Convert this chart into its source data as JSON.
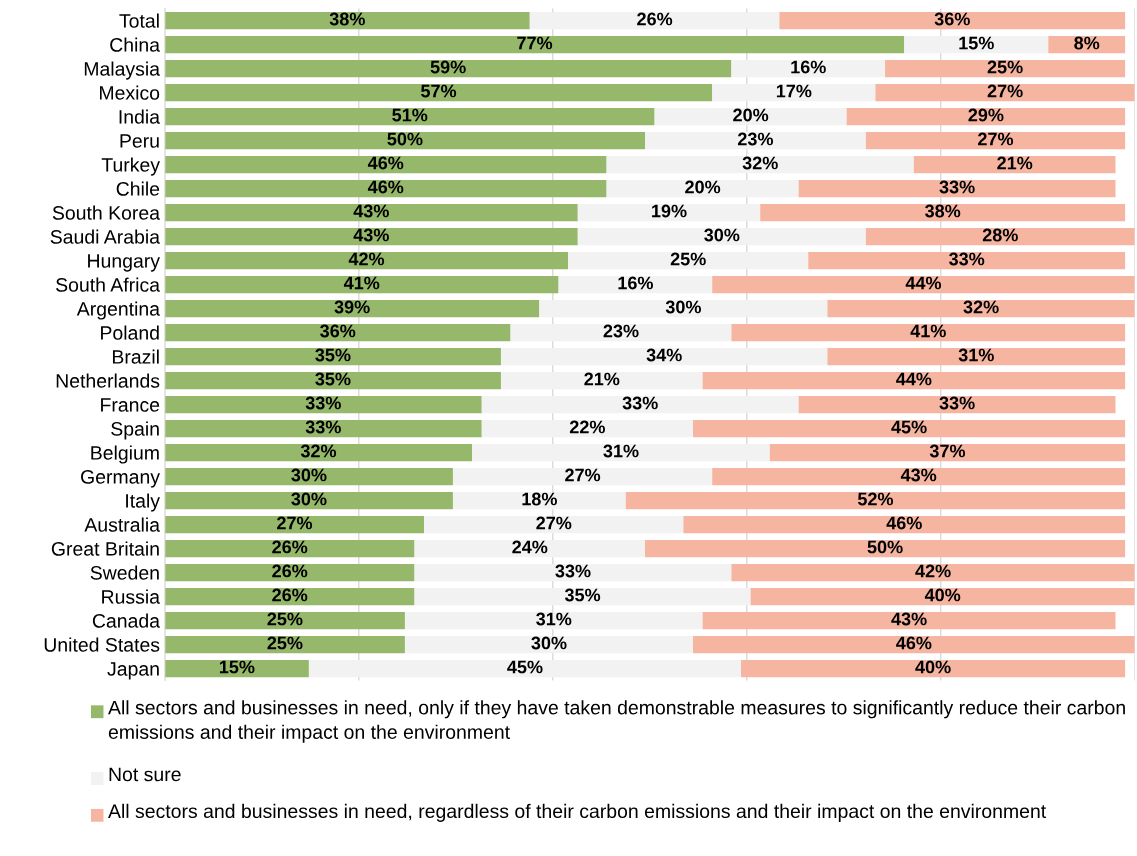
{
  "chart_data": {
    "type": "bar",
    "orientation": "horizontal",
    "stacked": true,
    "grid": "x",
    "legend": "bottom",
    "tick_labels": "y",
    "categories": [
      "Total",
      "China",
      "Malaysia",
      "Mexico",
      "India",
      "Peru",
      "Turkey",
      "Chile",
      "South Korea",
      "Saudi Arabia",
      "Hungary",
      "South Africa",
      "Argentina",
      "Poland",
      "Brazil",
      "Netherlands",
      "France",
      "Spain",
      "Belgium",
      "Germany",
      "Italy",
      "Australia",
      "Great Britain",
      "Sweden",
      "Russia",
      "Canada",
      "United States",
      "Japan"
    ],
    "series": [
      {
        "name": "All sectors and businesses in need, only if they have taken demonstrable measures to significantly reduce their carbon emissions and their impact on the environment",
        "color": "#95b86a",
        "values": [
          38,
          77,
          59,
          57,
          51,
          50,
          46,
          46,
          43,
          43,
          42,
          41,
          39,
          36,
          35,
          35,
          33,
          33,
          32,
          30,
          30,
          27,
          26,
          26,
          26,
          25,
          25,
          15
        ],
        "value_labels": [
          "38%",
          "77%",
          "59%",
          "57%",
          "51%",
          "50%",
          "46%",
          "46%",
          "43%",
          "43%",
          "42%",
          "41%",
          "39%",
          "36%",
          "35%",
          "35%",
          "33%",
          "33%",
          "32%",
          "30%",
          "30%",
          "27%",
          "26%",
          "26%",
          "26%",
          "25%",
          "25%",
          "15%"
        ]
      },
      {
        "name": "Not sure",
        "color": "#f2f2f2",
        "values": [
          26,
          15,
          16,
          17,
          20,
          23,
          32,
          20,
          19,
          30,
          25,
          16,
          30,
          23,
          34,
          21,
          33,
          22,
          31,
          27,
          18,
          27,
          24,
          33,
          35,
          31,
          30,
          45
        ],
        "value_labels": [
          "26%",
          "15%",
          "16%",
          "17%",
          "20%",
          "23%",
          "32%",
          "20%",
          "19%",
          "30%",
          "25%",
          "16%",
          "30%",
          "23%",
          "34%",
          "21%",
          "33%",
          "22%",
          "31%",
          "27%",
          "18%",
          "27%",
          "24%",
          "33%",
          "35%",
          "31%",
          "30%",
          "45%"
        ]
      },
      {
        "name": "All sectors and businesses in need, regardless of their carbon emissions and their impact on the environment",
        "color": "#f5b5a0",
        "values": [
          36,
          8,
          25,
          27,
          29,
          27,
          21,
          33,
          38,
          28,
          33,
          44,
          32,
          41,
          31,
          44,
          33,
          45,
          37,
          43,
          52,
          46,
          50,
          42,
          40,
          43,
          46,
          40
        ],
        "value_labels": [
          "36%",
          "8%",
          "25%",
          "27%",
          "29%",
          "27%",
          "21%",
          "33%",
          "38%",
          "28%",
          "33%",
          "44%",
          "32%",
          "41%",
          "31%",
          "44%",
          "33%",
          "45%",
          "37%",
          "43%",
          "52%",
          "46%",
          "50%",
          "42%",
          "40%",
          "43%",
          "46%",
          "40%"
        ]
      }
    ]
  }
}
